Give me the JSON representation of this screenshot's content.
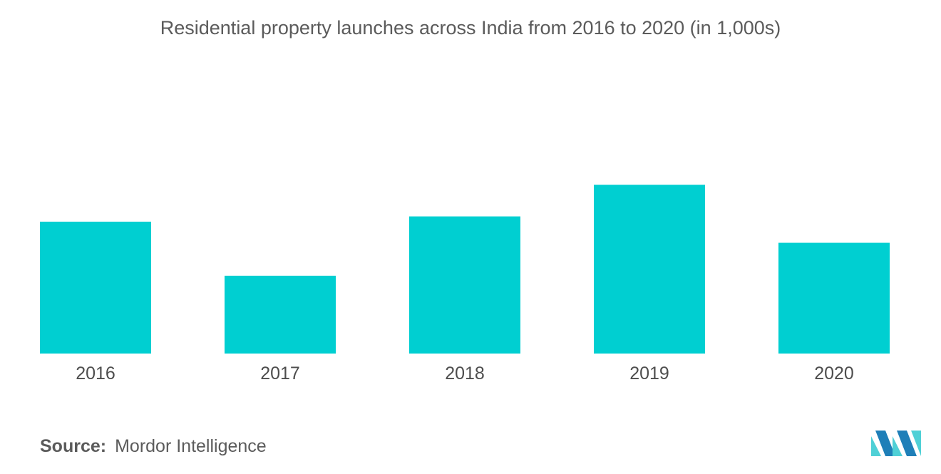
{
  "title": "Residential property launches across India from 2016 to 2020 (in 1,000s)",
  "source": {
    "label": "Source:",
    "text": "Mordor Intelligence"
  },
  "colors": {
    "bar": "#00cfd1",
    "logo_dark": "#1f7fb8",
    "logo_light": "#4fd0d6"
  },
  "logo_icon": "mordor-intelligence-logo",
  "chart_data": {
    "type": "bar",
    "title": "Residential property launches across India from 2016 to 2020 (in 1,000s)",
    "categories": [
      "2016",
      "2017",
      "2018",
      "2019",
      "2020"
    ],
    "values": [
      200,
      118,
      208,
      256,
      168
    ],
    "xlabel": "",
    "ylabel": "",
    "ylim": [
      0,
      400
    ],
    "grid": false,
    "legend": "none",
    "value_labels": false
  }
}
